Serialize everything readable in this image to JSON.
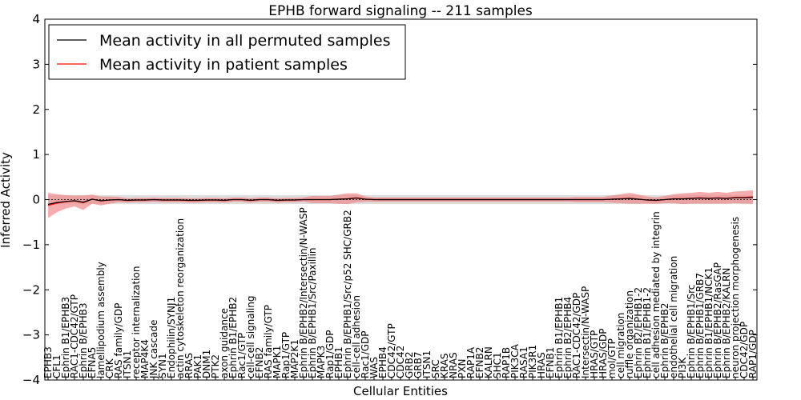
{
  "chart_data": {
    "type": "line",
    "title": "EPHB forward signaling -- 211 samples",
    "xlabel": "Cellular Entities",
    "ylabel": "Inferred Activity",
    "ylim": [
      -4,
      4
    ],
    "yticks": [
      4,
      3,
      2,
      1,
      0,
      -1,
      -2,
      -3,
      -4
    ],
    "ytick_labels": [
      "4",
      "3",
      "2",
      "1",
      "0",
      "−1",
      "−2",
      "−3",
      "−4"
    ],
    "grid": false,
    "legend_position": "top-left",
    "categories": [
      "EPHB3",
      "CFL1",
      "Ephrin B1/EPHB3",
      "RAC1-CDC42/GTP",
      "Ephrin B/EPHB3",
      "EFNA5",
      "lamellipodium assembly",
      "CRK",
      "RAS family/GDP",
      "ITSN1",
      "receptor internalization",
      "MAP4K4",
      "JNK cascade",
      "SYN1",
      "Endophilin/SYNJ1",
      "actin cytoskeleton reorganization",
      "RRAS",
      "PAK1",
      "DNM1",
      "PTK2",
      "axon guidance",
      "Ephrin B1/EPHB2",
      "Rac1/GTP",
      "cell-cell signaling",
      "EFNB2",
      "RAS family/GTP",
      "MAPK1",
      "Rap1/GTP",
      "MAP2K1",
      "Ephrin B/EPHB2/Intersectin/N-WASP",
      "Ephrin B/EPHB1/Src/Paxillin",
      "MAPK3",
      "Rap1/GDP",
      "EPHB1",
      "Ephrin B/EPHB1/Src/p52 SHC/GRB2",
      "cell-cell adhesion",
      "Rac1/GDP",
      "WAS",
      "EPHB4",
      "CDC42/GTP",
      "CDC42",
      "GRB2",
      "GRB7",
      "ITSN1",
      "SRC",
      "KRAS",
      "NRAS",
      "PXN",
      "RAP1A",
      "EFNB2",
      "KALRN",
      "SHC1",
      "RAP1B",
      "PIK3CA",
      "RASA1",
      "PIK3R1",
      "HRAS",
      "EFNB1",
      "Ephrin B1/EPHB1",
      "Ephrin B2/EPHB4",
      "RAC1-CDC42/GDP",
      "Intersectin/N-WASP",
      "HRAS/GTP",
      "HRAS/GDP",
      "mol/GTP",
      "cell migration",
      "ruffle organization",
      "Ephrin B2/EPHB1-2",
      "Ephrin B1/EPHB1-2",
      "cell adhesion mediated by integrin",
      "Ephrin B/EPHB2",
      "endothelial cell migration",
      "PI3K",
      "Ephrin B/EPHB1/Src",
      "Ephrin B/EPHB1/GRB7",
      "Ephrin B1/EPHB1/NCK1",
      "Ephrin B/EPHB2/RasGAP",
      "Ephrin B/EPHB2/KALRN",
      "neuron projection morphogenesis",
      "CDC42/GDP",
      "RAP1/GDP"
    ],
    "series": [
      {
        "name": "Mean activity in all permuted samples",
        "color": "#000000",
        "values": [
          0.0,
          0.0,
          0.0,
          0.0,
          0.0,
          0.0,
          0.0,
          0.0,
          0.0,
          0.0,
          0.0,
          0.0,
          0.0,
          0.0,
          0.0,
          0.0,
          0.0,
          0.0,
          0.0,
          0.0,
          0.0,
          0.0,
          0.0,
          0.0,
          0.0,
          0.0,
          0.0,
          0.0,
          0.0,
          0.0,
          0.0,
          0.0,
          0.0,
          0.0,
          0.0,
          0.0,
          0.0,
          0.0,
          0.0,
          0.0,
          0.0,
          0.0,
          0.0,
          0.0,
          0.0,
          0.0,
          0.0,
          0.0,
          0.0,
          0.0,
          0.0,
          0.0,
          0.0,
          0.0,
          0.0,
          0.0,
          0.0,
          0.0,
          0.0,
          0.0,
          0.0,
          0.0,
          0.0,
          0.0,
          0.0,
          0.0,
          0.0,
          0.0,
          0.0,
          0.0,
          0.0,
          0.0,
          0.0,
          0.0,
          0.0,
          0.0,
          0.0,
          0.0,
          0.0,
          0.0,
          0.0
        ],
        "band": 0.1
      },
      {
        "name": "Mean activity in patient samples",
        "color": "#ff0000",
        "values": [
          -0.13,
          -0.08,
          -0.05,
          -0.03,
          -0.07,
          0.01,
          -0.03,
          -0.01,
          0.0,
          -0.02,
          -0.01,
          -0.01,
          0.0,
          -0.01,
          -0.01,
          -0.01,
          -0.02,
          -0.02,
          -0.01,
          -0.01,
          -0.02,
          0.0,
          0.0,
          -0.02,
          0.0,
          0.0,
          -0.02,
          -0.01,
          -0.01,
          0.0,
          0.0,
          0.0,
          0.0,
          0.01,
          0.02,
          0.04,
          0.01,
          0.0,
          0.0,
          0.0,
          0.0,
          0.0,
          0.0,
          0.0,
          0.0,
          0.0,
          0.0,
          0.0,
          0.0,
          0.0,
          0.0,
          0.0,
          0.0,
          0.0,
          0.0,
          0.0,
          0.0,
          0.0,
          0.0,
          0.0,
          0.0,
          0.0,
          0.0,
          0.0,
          0.01,
          0.02,
          0.03,
          0.01,
          -0.01,
          -0.02,
          0.0,
          0.02,
          0.02,
          0.03,
          0.04,
          0.03,
          0.04,
          0.03,
          0.05,
          0.05,
          0.06
        ],
        "bands": [
          0.28,
          0.2,
          0.15,
          0.12,
          0.16,
          0.1,
          0.1,
          0.08,
          0.06,
          0.05,
          0.05,
          0.05,
          0.05,
          0.05,
          0.05,
          0.05,
          0.05,
          0.05,
          0.05,
          0.05,
          0.05,
          0.05,
          0.05,
          0.05,
          0.05,
          0.05,
          0.05,
          0.05,
          0.05,
          0.05,
          0.08,
          0.08,
          0.08,
          0.1,
          0.12,
          0.1,
          0.06,
          0.05,
          0.05,
          0.05,
          0.05,
          0.05,
          0.05,
          0.05,
          0.05,
          0.05,
          0.05,
          0.05,
          0.05,
          0.05,
          0.05,
          0.05,
          0.05,
          0.05,
          0.05,
          0.05,
          0.05,
          0.05,
          0.05,
          0.05,
          0.06,
          0.06,
          0.06,
          0.06,
          0.08,
          0.1,
          0.12,
          0.1,
          0.08,
          0.07,
          0.08,
          0.1,
          0.12,
          0.12,
          0.13,
          0.12,
          0.13,
          0.12,
          0.13,
          0.14,
          0.15
        ]
      }
    ],
    "background_band_color": "#d3d3d3",
    "patient_band_color": "#f08080"
  }
}
